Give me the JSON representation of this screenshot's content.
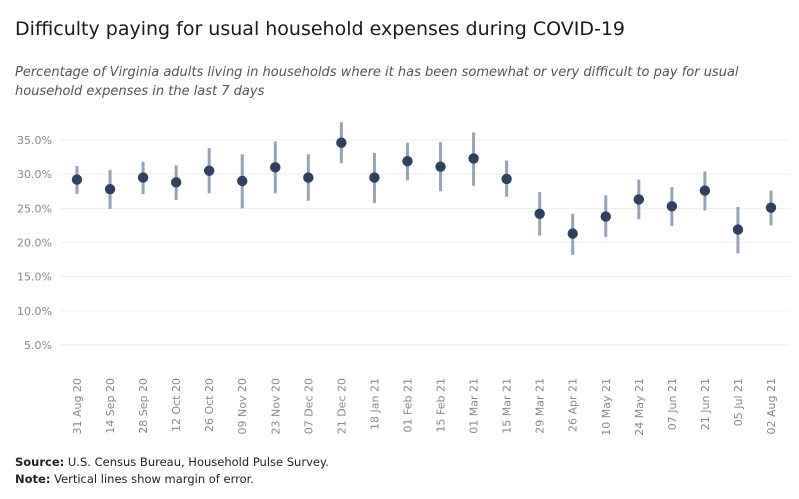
{
  "chart_data": {
    "type": "scatter",
    "title": "Difficulty paying for usual household expenses during COVID-19",
    "subtitle": "Percentage of Virginia adults living in households where it has been somewhat or very difficult to pay for usual household expenses in the last 7 days",
    "xlabel": "",
    "ylabel": "",
    "ylim": [
      0,
      38
    ],
    "y_ticks": [
      "5.0%",
      "10.0%",
      "15.0%",
      "20.0%",
      "25.0%",
      "30.0%",
      "35.0%"
    ],
    "y_tick_values": [
      5,
      10,
      15,
      20,
      25,
      30,
      35
    ],
    "grid": true,
    "categories": [
      "31 Aug 20",
      "14 Sep 20",
      "28 Sep 20",
      "12 Oct 20",
      "26 Oct 20",
      "09 Nov 20",
      "23 Nov 20",
      "07 Dec 20",
      "21 Dec 20",
      "18 Jan 21",
      "01 Feb 21",
      "15 Feb 21",
      "01 Mar 21",
      "15 Mar 21",
      "29 Mar 21",
      "26 Apr 21",
      "10 May 21",
      "24 May 21",
      "07 Jun 21",
      "21 Jun 21",
      "05 Jul 21",
      "02 Aug 21"
    ],
    "series": [
      {
        "values": [
          29.2,
          27.8,
          29.5,
          28.8,
          30.5,
          29.0,
          31.0,
          29.5,
          34.6,
          29.5,
          31.9,
          31.1,
          32.3,
          29.3,
          24.2,
          21.3,
          23.8,
          26.3,
          25.3,
          27.6,
          21.9,
          25.1
        ],
        "low": [
          27.1,
          24.9,
          27.1,
          26.2,
          27.2,
          25.0,
          27.2,
          26.1,
          31.6,
          25.8,
          29.1,
          27.5,
          28.3,
          26.7,
          21.0,
          18.2,
          20.8,
          23.4,
          22.4,
          24.7,
          18.4,
          22.5
        ],
        "high": [
          31.2,
          30.6,
          31.8,
          31.3,
          33.8,
          32.9,
          34.8,
          32.9,
          37.6,
          33.1,
          34.6,
          34.7,
          36.1,
          32.0,
          27.4,
          24.2,
          26.9,
          29.2,
          28.1,
          30.4,
          25.2,
          27.6
        ]
      }
    ],
    "colors": {
      "point": "#2e425e",
      "error_bar": "#97a3b3",
      "grid": "#eeeeee"
    }
  },
  "footer": {
    "source_label": "Source:",
    "source_text": "U.S. Census Bureau, Household Pulse Survey.",
    "note_label": "Note:",
    "note_text": "Vertical lines show margin of error."
  }
}
